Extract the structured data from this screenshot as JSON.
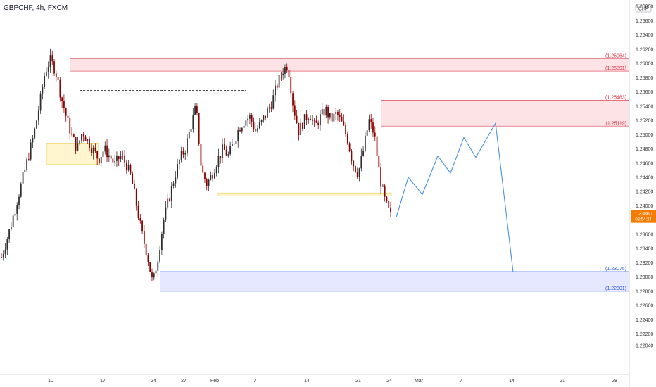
{
  "header": {
    "title": "GBPCHF, 4h, FXCM"
  },
  "currency_label": "CHF",
  "colors": {
    "up": "#2e2e2e",
    "down": "#8b0000",
    "supply_fill": "#fde0e3",
    "supply_border": "#e06070",
    "supply_label": "#e03040",
    "demand_fill": "#e3e6ff",
    "demand_border": "#4a78e0",
    "demand_label": "#3060d0",
    "pocket_fill": "#fff6d0",
    "pocket_border": "#f0d060",
    "projection": "#4a90e2",
    "price_tag": "#f57c00"
  },
  "chart_data": {
    "type": "candlestick",
    "ylim": [
      1.2186,
      1.2678
    ],
    "y_ticks": [
      "1.26800",
      "1.26600",
      "1.26400",
      "1.26200",
      "1.26000",
      "1.25800",
      "1.25600",
      "1.25400",
      "1.25200",
      "1.25000",
      "1.24800",
      "1.24600",
      "1.24400",
      "1.24200",
      "1.24000",
      "1.23800",
      "1.23600",
      "1.23400",
      "1.23200",
      "1.23000",
      "1.22800",
      "1.22600",
      "1.22400",
      "1.22200",
      "1.22040"
    ],
    "x_ticks": [
      "10",
      "17",
      "24",
      "27",
      "Feb",
      "7",
      "14",
      "21",
      "24",
      "Mar",
      "7",
      "14",
      "21",
      "28"
    ],
    "current_price": {
      "value": "1.23860",
      "timer": "02:54:24"
    },
    "zones": [
      {
        "kind": "supply",
        "top": 1.26064,
        "bottom": 1.25891,
        "top_label": "(1.26064)",
        "bottom_label": "(1.25891)"
      },
      {
        "kind": "supply",
        "top": 1.25483,
        "bottom": 1.25119,
        "top_label": "(1.25483)",
        "bottom_label": "(1.25119)"
      },
      {
        "kind": "demand",
        "top": 1.23075,
        "bottom": 1.22801,
        "top_label": "(1.23075)",
        "bottom_label": "(1.22801)"
      }
    ],
    "pockets": [
      {
        "top": 1.2488,
        "bottom": 1.2458
      },
      {
        "top": 1.2418,
        "bottom": 1.2414
      }
    ],
    "dashed_level": {
      "value": 1.2562
    },
    "projection_path": [
      1.2384,
      1.244,
      1.2416,
      1.247,
      1.2446,
      1.2496,
      1.2468,
      1.2516,
      1.2307
    ],
    "price_path": [
      1.2328,
      1.2352,
      1.238,
      1.241,
      1.244,
      1.247,
      1.25,
      1.254,
      1.2585,
      1.2605,
      1.259,
      1.2555,
      1.2525,
      1.2498,
      1.248,
      1.2505,
      1.249,
      1.2478,
      1.2465,
      1.248,
      1.247,
      1.2458,
      1.247,
      1.246,
      1.244,
      1.24,
      1.236,
      1.233,
      1.229,
      1.233,
      1.238,
      1.241,
      1.244,
      1.2465,
      1.248,
      1.251,
      1.254,
      1.245,
      1.243,
      1.2445,
      1.2465,
      1.248,
      1.247,
      1.249,
      1.251,
      1.252,
      1.2525,
      1.2505,
      1.2515,
      1.253,
      1.2545,
      1.257,
      1.259,
      1.2598,
      1.254,
      1.2505,
      1.252,
      1.253,
      1.251,
      1.2525,
      1.2535,
      1.252,
      1.253,
      1.2515,
      1.2495,
      1.246,
      1.2445,
      1.248,
      1.252,
      1.25,
      1.244,
      1.2405,
      1.2386
    ]
  }
}
